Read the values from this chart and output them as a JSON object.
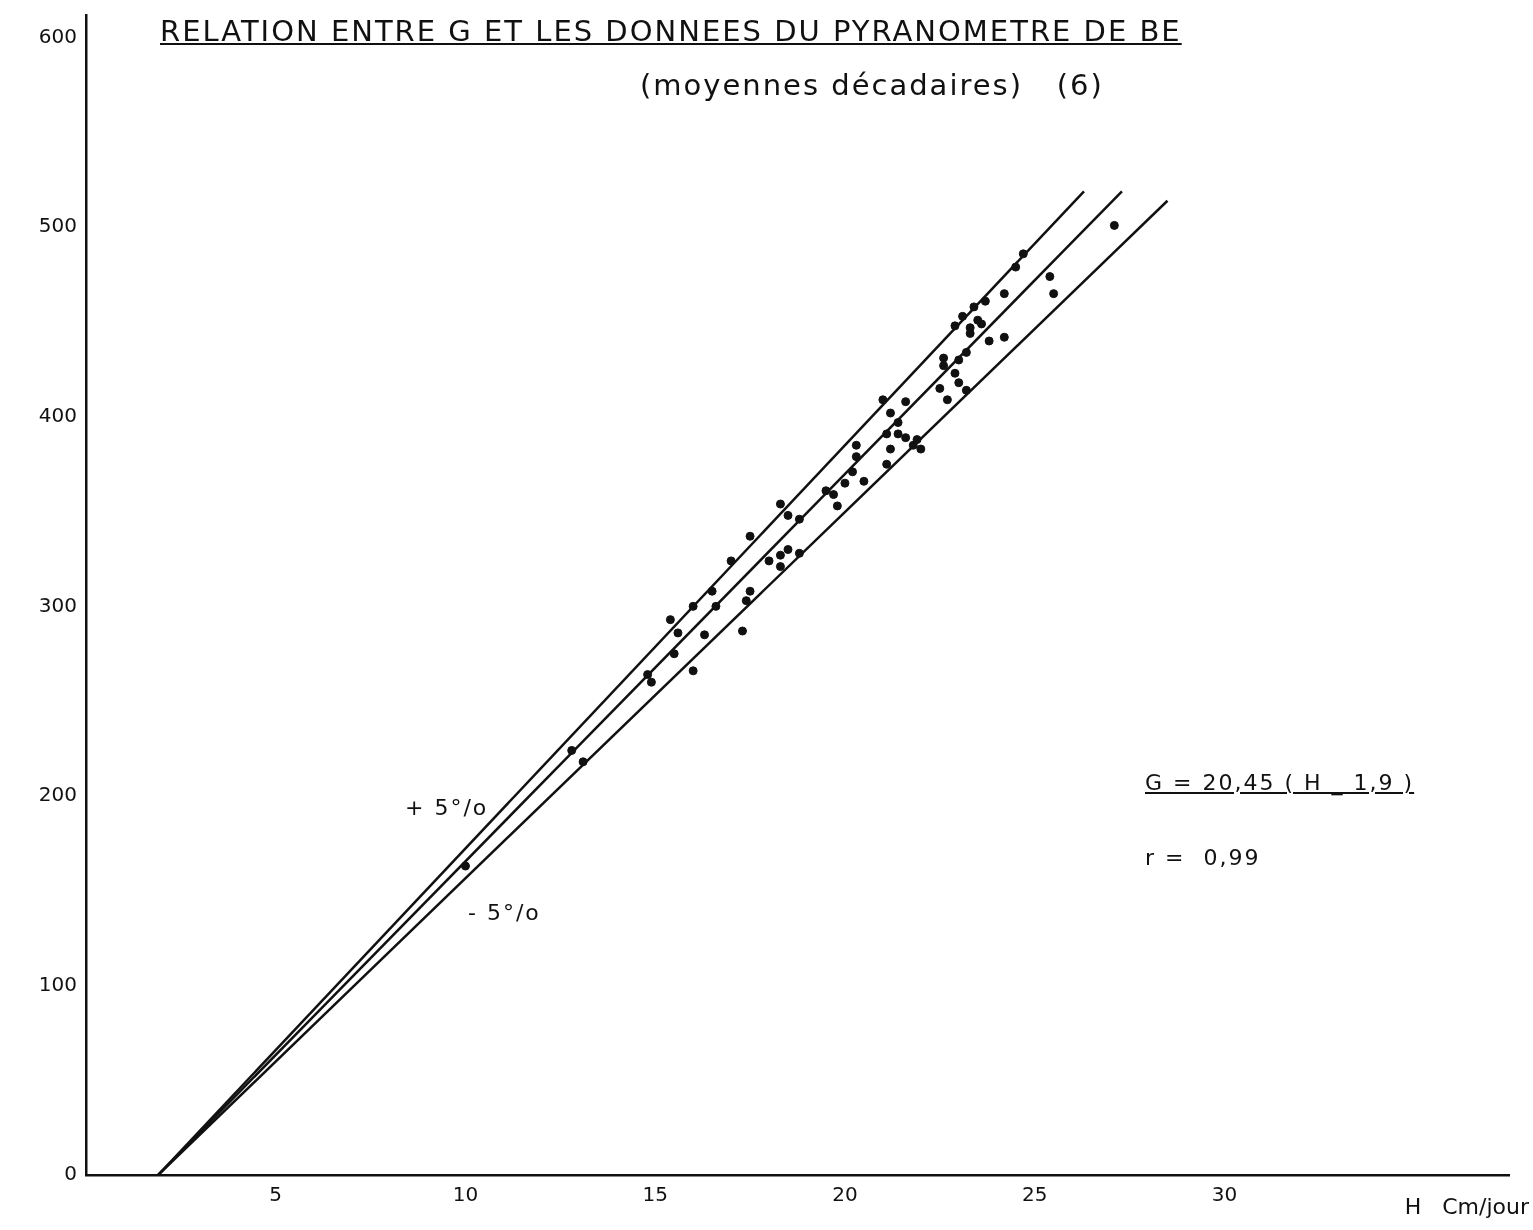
{
  "chart_data": {
    "type": "scatter",
    "title": "RELATION ENTRE G ET LES DONNEES DU PYRANOMETRE DE BE",
    "subtitle": "(moyennes décadaires)   (6)",
    "xlabel": "H   Cm/jour",
    "xlim": [
      0,
      37.5
    ],
    "xticks": [
      5,
      10,
      15,
      20,
      25,
      30
    ],
    "ylim": [
      0,
      612
    ],
    "yticks": [
      0,
      100,
      200,
      300,
      400,
      500,
      600
    ],
    "grid": false,
    "legend": false,
    "series": [
      {
        "color": "#111111",
        "marker": "circle",
        "x": [
          10.0,
          12.8,
          13.1,
          14.8,
          14.9,
          15.4,
          15.5,
          15.6,
          16.0,
          16.0,
          16.3,
          16.5,
          16.6,
          17.0,
          17.3,
          17.4,
          17.5,
          17.5,
          18.0,
          18.3,
          18.3,
          18.3,
          18.5,
          18.5,
          18.8,
          18.8,
          19.5,
          19.7,
          19.8,
          20.0,
          20.2,
          20.3,
          20.3,
          20.5,
          21.0,
          21.1,
          21.1,
          21.2,
          21.2,
          21.4,
          21.4,
          21.6,
          21.6,
          21.8,
          21.9,
          22.0,
          22.5,
          22.6,
          22.6,
          22.7,
          22.9,
          22.9,
          23.0,
          23.0,
          23.1,
          23.2,
          23.2,
          23.3,
          23.3,
          23.4,
          23.5,
          23.6,
          23.7,
          23.8,
          24.2,
          24.2,
          24.5,
          24.7,
          25.4,
          25.5,
          27.1
        ],
        "values": [
          163,
          224,
          218,
          264,
          260,
          293,
          275,
          286,
          266,
          300,
          285,
          308,
          300,
          324,
          287,
          303,
          308,
          337,
          324,
          321,
          354,
          327,
          348,
          330,
          346,
          328,
          361,
          359,
          353,
          365,
          371,
          385,
          379,
          366,
          409,
          391,
          375,
          383,
          402,
          397,
          391,
          408,
          389,
          385,
          388,
          383,
          415,
          431,
          427,
          409,
          448,
          423,
          430,
          418,
          453,
          434,
          414,
          444,
          447,
          458,
          451,
          449,
          461,
          440,
          465,
          442,
          479,
          486,
          474,
          465,
          501
        ]
      },
      {
        "type": "line",
        "color": "#111111",
        "marker": "none",
        "line_style": "solid",
        "x": [
          1.9,
          26.3
        ],
        "values": [
          0,
          519
        ]
      },
      {
        "type": "line",
        "color": "#111111",
        "marker": "none",
        "line_style": "solid",
        "x": [
          1.9,
          27.3
        ],
        "values": [
          0,
          519
        ]
      },
      {
        "type": "line",
        "color": "#111111",
        "marker": "none",
        "line_style": "solid",
        "x": [
          1.9,
          28.5
        ],
        "values": [
          0,
          514
        ]
      }
    ],
    "annotations": [
      "+ 5°/o",
      "- 5°/o",
      "G = 20,45 ( H _ 1,9 )",
      "r =  0,99"
    ]
  }
}
